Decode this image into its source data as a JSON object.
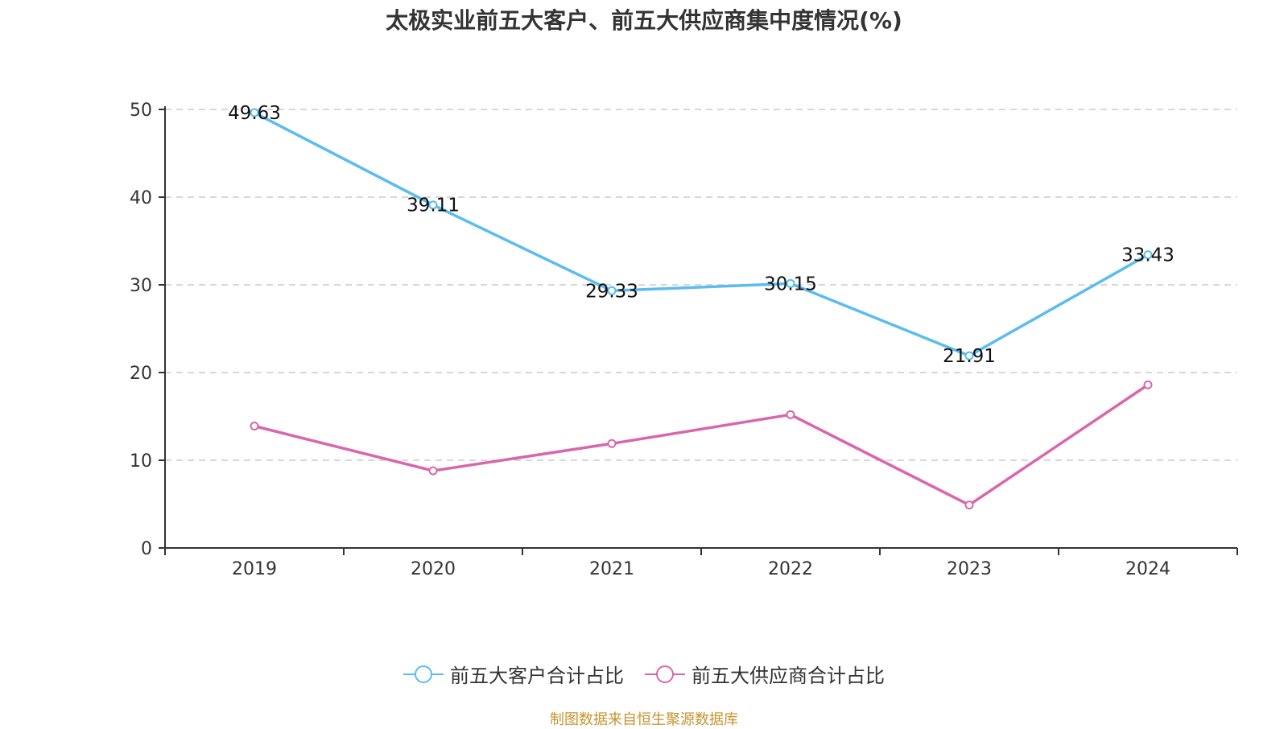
{
  "chart_data": {
    "type": "line",
    "title": "太极实业前五大客户、前五大供应商集中度情况(%)",
    "xlabel": "",
    "ylabel": "",
    "categories": [
      "2019",
      "2020",
      "2021",
      "2022",
      "2023",
      "2024"
    ],
    "ylim": [
      0,
      50
    ],
    "yticks": [
      "0",
      "10",
      "20",
      "30",
      "40",
      "50"
    ],
    "grid": true,
    "legend_position": "bottom",
    "series": [
      {
        "name": "前五大客户合计占比",
        "color": "#5bbcf0",
        "values": [
          49.63,
          39.11,
          29.33,
          30.15,
          21.91,
          33.43
        ],
        "labels": [
          "49.63",
          "39.11",
          "29.33",
          "30.15",
          "21.91",
          "33.43"
        ]
      },
      {
        "name": "前五大供应商合计占比",
        "color": "#d966ad",
        "values": [
          13.9,
          8.8,
          11.9,
          15.2,
          4.9,
          18.6
        ]
      }
    ]
  },
  "footer": {
    "source": "制图数据来自恒生聚源数据库"
  }
}
